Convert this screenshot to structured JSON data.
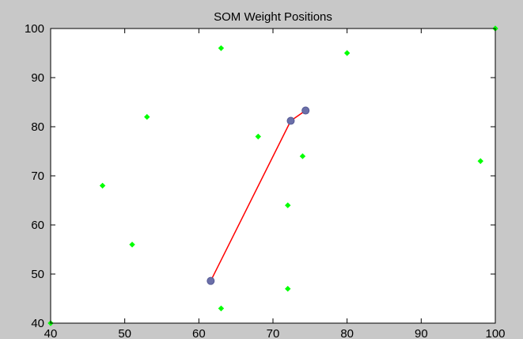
{
  "chart_data": {
    "type": "scatter",
    "title": "SOM Weight Positions",
    "xlabel": "",
    "ylabel": "",
    "xlim": [
      40,
      100
    ],
    "ylim": [
      40,
      100
    ],
    "x_ticks": [
      40,
      50,
      60,
      70,
      80,
      90,
      100
    ],
    "y_ticks": [
      40,
      50,
      60,
      70,
      80,
      90,
      100
    ],
    "grid": false,
    "legend": "none",
    "series": [
      {
        "kind": "points",
        "color": "#00ff00",
        "marker": "diamond",
        "points": [
          {
            "x": 40,
            "y": 40
          },
          {
            "x": 47,
            "y": 68
          },
          {
            "x": 51,
            "y": 56
          },
          {
            "x": 53,
            "y": 82
          },
          {
            "x": 63,
            "y": 96
          },
          {
            "x": 63,
            "y": 43
          },
          {
            "x": 68,
            "y": 78
          },
          {
            "x": 72,
            "y": 64
          },
          {
            "x": 72,
            "y": 47
          },
          {
            "x": 74,
            "y": 74
          },
          {
            "x": 80,
            "y": 95
          },
          {
            "x": 98,
            "y": 73
          },
          {
            "x": 100,
            "y": 100
          }
        ]
      },
      {
        "kind": "weights",
        "color": "#6b6fa8",
        "line_color": "#ff0000",
        "marker": "circle",
        "points": [
          {
            "x": 61.6,
            "y": 48.6
          },
          {
            "x": 72.4,
            "y": 81.2
          },
          {
            "x": 74.4,
            "y": 83.3
          }
        ]
      }
    ]
  }
}
